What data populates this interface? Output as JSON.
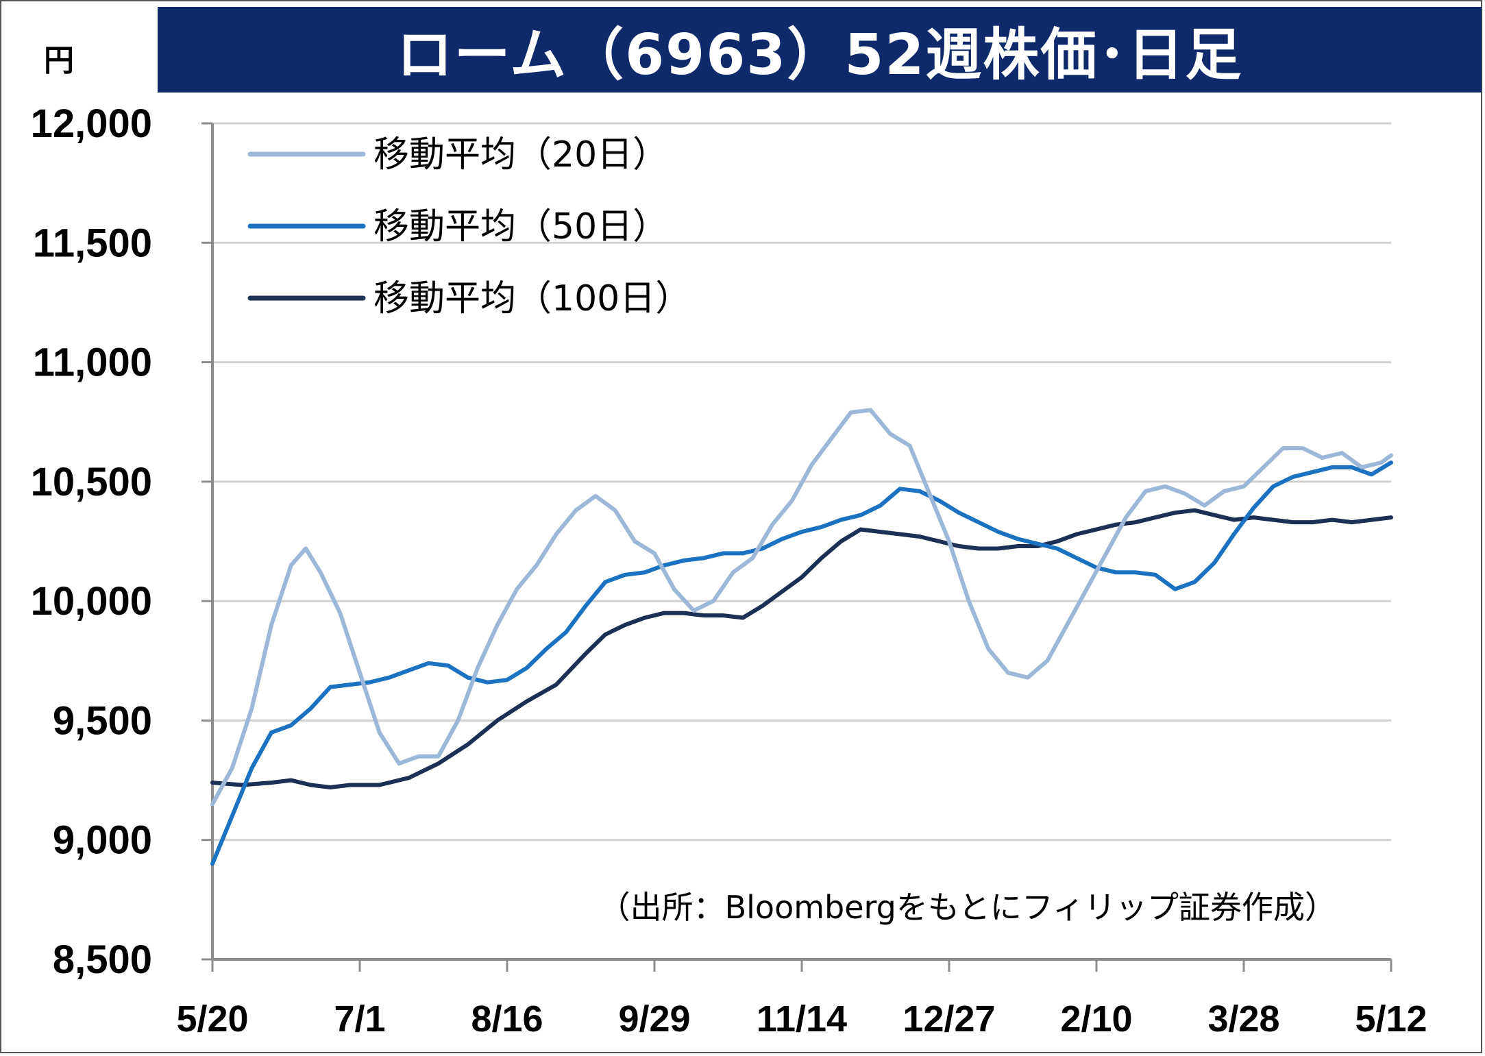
{
  "title": "ローム（6963）52週株価･日足",
  "unit": "円",
  "source": "（出所：Bloombergをもとにフィリップ証券作成）",
  "chart_data": {
    "type": "line",
    "title": "ローム（6963）52週株価･日足",
    "ylabel": "円",
    "ylim": [
      8500,
      12000
    ],
    "y_ticks": [
      "12,000",
      "11,500",
      "11,000",
      "10,500",
      "10,000",
      "9,500",
      "9,000",
      "8,500"
    ],
    "y_tick_values": [
      12000,
      11500,
      11000,
      10500,
      10000,
      9500,
      9000,
      8500
    ],
    "x_ticks": [
      "5/20",
      "7/1",
      "8/16",
      "9/29",
      "11/14",
      "12/27",
      "2/10",
      "3/28",
      "5/12"
    ],
    "x_tick_index": [
      0,
      30,
      60,
      90,
      120,
      150,
      180,
      210,
      240
    ],
    "grid": true,
    "legend_position": "top-left",
    "series": [
      {
        "name": "移動平均（20日）",
        "color": "#9db7d8",
        "points": [
          [
            0,
            9150
          ],
          [
            4,
            9300
          ],
          [
            8,
            9550
          ],
          [
            12,
            9900
          ],
          [
            16,
            10150
          ],
          [
            19,
            10220
          ],
          [
            22,
            10120
          ],
          [
            26,
            9950
          ],
          [
            30,
            9700
          ],
          [
            34,
            9450
          ],
          [
            38,
            9320
          ],
          [
            42,
            9350
          ],
          [
            46,
            9350
          ],
          [
            50,
            9500
          ],
          [
            54,
            9720
          ],
          [
            58,
            9900
          ],
          [
            62,
            10050
          ],
          [
            66,
            10150
          ],
          [
            70,
            10280
          ],
          [
            74,
            10380
          ],
          [
            78,
            10440
          ],
          [
            82,
            10380
          ],
          [
            86,
            10250
          ],
          [
            90,
            10200
          ],
          [
            94,
            10050
          ],
          [
            98,
            9960
          ],
          [
            102,
            10000
          ],
          [
            106,
            10120
          ],
          [
            110,
            10180
          ],
          [
            114,
            10320
          ],
          [
            118,
            10420
          ],
          [
            122,
            10570
          ],
          [
            126,
            10680
          ],
          [
            130,
            10790
          ],
          [
            134,
            10800
          ],
          [
            138,
            10700
          ],
          [
            142,
            10650
          ],
          [
            146,
            10450
          ],
          [
            150,
            10250
          ],
          [
            154,
            10000
          ],
          [
            158,
            9800
          ],
          [
            162,
            9700
          ],
          [
            166,
            9680
          ],
          [
            170,
            9750
          ],
          [
            174,
            9900
          ],
          [
            178,
            10050
          ],
          [
            182,
            10200
          ],
          [
            186,
            10350
          ],
          [
            190,
            10460
          ],
          [
            194,
            10480
          ],
          [
            198,
            10450
          ],
          [
            202,
            10400
          ],
          [
            206,
            10460
          ],
          [
            210,
            10480
          ],
          [
            214,
            10560
          ],
          [
            218,
            10640
          ],
          [
            222,
            10640
          ],
          [
            226,
            10600
          ],
          [
            230,
            10620
          ],
          [
            234,
            10560
          ],
          [
            238,
            10580
          ],
          [
            240,
            10610
          ]
        ]
      },
      {
        "name": "移動平均（50日）",
        "color": "#1a72c0",
        "points": [
          [
            0,
            8900
          ],
          [
            4,
            9100
          ],
          [
            8,
            9300
          ],
          [
            12,
            9450
          ],
          [
            16,
            9480
          ],
          [
            20,
            9550
          ],
          [
            24,
            9640
          ],
          [
            28,
            9650
          ],
          [
            32,
            9660
          ],
          [
            36,
            9680
          ],
          [
            40,
            9710
          ],
          [
            44,
            9740
          ],
          [
            48,
            9730
          ],
          [
            52,
            9680
          ],
          [
            56,
            9660
          ],
          [
            60,
            9670
          ],
          [
            64,
            9720
          ],
          [
            68,
            9800
          ],
          [
            72,
            9870
          ],
          [
            76,
            9980
          ],
          [
            80,
            10080
          ],
          [
            84,
            10110
          ],
          [
            88,
            10120
          ],
          [
            92,
            10150
          ],
          [
            96,
            10170
          ],
          [
            100,
            10180
          ],
          [
            104,
            10200
          ],
          [
            108,
            10200
          ],
          [
            112,
            10220
          ],
          [
            116,
            10260
          ],
          [
            120,
            10290
          ],
          [
            124,
            10310
          ],
          [
            128,
            10340
          ],
          [
            132,
            10360
          ],
          [
            136,
            10400
          ],
          [
            140,
            10470
          ],
          [
            144,
            10460
          ],
          [
            148,
            10420
          ],
          [
            152,
            10370
          ],
          [
            156,
            10330
          ],
          [
            160,
            10290
          ],
          [
            164,
            10260
          ],
          [
            168,
            10240
          ],
          [
            172,
            10220
          ],
          [
            176,
            10180
          ],
          [
            180,
            10140
          ],
          [
            184,
            10120
          ],
          [
            188,
            10120
          ],
          [
            192,
            10110
          ],
          [
            196,
            10050
          ],
          [
            200,
            10080
          ],
          [
            204,
            10160
          ],
          [
            208,
            10280
          ],
          [
            212,
            10390
          ],
          [
            216,
            10480
          ],
          [
            220,
            10520
          ],
          [
            224,
            10540
          ],
          [
            228,
            10560
          ],
          [
            232,
            10560
          ],
          [
            236,
            10530
          ],
          [
            240,
            10580
          ]
        ]
      },
      {
        "name": "移動平均（100日）",
        "color": "#1c2f55",
        "points": [
          [
            0,
            9240
          ],
          [
            6,
            9230
          ],
          [
            12,
            9240
          ],
          [
            16,
            9250
          ],
          [
            20,
            9230
          ],
          [
            24,
            9220
          ],
          [
            28,
            9230
          ],
          [
            34,
            9230
          ],
          [
            40,
            9260
          ],
          [
            46,
            9320
          ],
          [
            52,
            9400
          ],
          [
            58,
            9500
          ],
          [
            64,
            9580
          ],
          [
            70,
            9650
          ],
          [
            76,
            9780
          ],
          [
            80,
            9860
          ],
          [
            84,
            9900
          ],
          [
            88,
            9930
          ],
          [
            92,
            9950
          ],
          [
            96,
            9950
          ],
          [
            100,
            9940
          ],
          [
            104,
            9940
          ],
          [
            108,
            9930
          ],
          [
            112,
            9980
          ],
          [
            116,
            10040
          ],
          [
            120,
            10100
          ],
          [
            124,
            10180
          ],
          [
            128,
            10250
          ],
          [
            132,
            10300
          ],
          [
            136,
            10290
          ],
          [
            140,
            10280
          ],
          [
            144,
            10270
          ],
          [
            148,
            10250
          ],
          [
            152,
            10230
          ],
          [
            156,
            10220
          ],
          [
            160,
            10220
          ],
          [
            164,
            10230
          ],
          [
            168,
            10230
          ],
          [
            172,
            10250
          ],
          [
            176,
            10280
          ],
          [
            180,
            10300
          ],
          [
            184,
            10320
          ],
          [
            188,
            10330
          ],
          [
            192,
            10350
          ],
          [
            196,
            10370
          ],
          [
            200,
            10380
          ],
          [
            204,
            10360
          ],
          [
            208,
            10340
          ],
          [
            212,
            10350
          ],
          [
            216,
            10340
          ],
          [
            220,
            10330
          ],
          [
            224,
            10330
          ],
          [
            228,
            10340
          ],
          [
            232,
            10330
          ],
          [
            236,
            10340
          ],
          [
            240,
            10350
          ]
        ]
      }
    ]
  }
}
